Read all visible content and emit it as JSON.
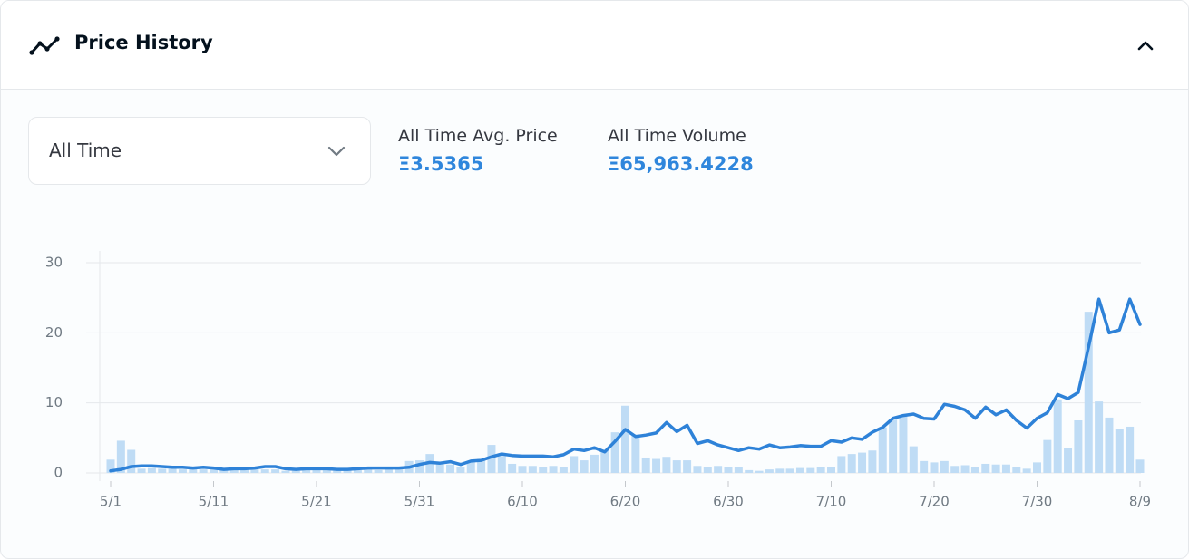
{
  "header": {
    "title": "Price History"
  },
  "filter": {
    "selected": "All Time"
  },
  "stats": [
    {
      "label": "All Time Avg. Price",
      "value": "Ξ3.5365"
    },
    {
      "label": "All Time Volume",
      "value": "Ξ65,963.4228"
    }
  ],
  "chart_data": {
    "type": "combo",
    "categories": [
      "5/1",
      null,
      null,
      null,
      null,
      null,
      null,
      null,
      null,
      null,
      "5/11",
      null,
      null,
      null,
      null,
      null,
      null,
      null,
      null,
      null,
      "5/21",
      null,
      null,
      null,
      null,
      null,
      null,
      null,
      null,
      null,
      "5/31",
      null,
      null,
      null,
      null,
      null,
      null,
      null,
      null,
      null,
      "6/10",
      null,
      null,
      null,
      null,
      null,
      null,
      null,
      null,
      null,
      "6/20",
      null,
      null,
      null,
      null,
      null,
      null,
      null,
      null,
      null,
      "6/30",
      null,
      null,
      null,
      null,
      null,
      null,
      null,
      null,
      null,
      "7/10",
      null,
      null,
      null,
      null,
      null,
      null,
      null,
      null,
      null,
      "7/20",
      null,
      null,
      null,
      null,
      null,
      null,
      null,
      null,
      null,
      "7/30",
      null,
      null,
      null,
      null,
      null,
      null,
      null,
      null,
      null,
      "8/9"
    ],
    "series": [
      {
        "type": "bar",
        "color": "#bfdcf5",
        "values": [
          1.9,
          4.6,
          3.3,
          0.6,
          0.7,
          0.6,
          0.6,
          0.5,
          0.6,
          0.5,
          0.5,
          0.4,
          0.4,
          0.4,
          0.5,
          0.5,
          0.5,
          0.3,
          0.3,
          0.4,
          0.4,
          0.4,
          0.3,
          0.4,
          0.4,
          0.5,
          0.4,
          0.5,
          0.5,
          1.7,
          1.8,
          2.7,
          1.4,
          1.2,
          0.8,
          1.6,
          2.0,
          4.0,
          2.4,
          1.3,
          1.0,
          1.0,
          0.8,
          1.0,
          0.9,
          2.4,
          1.8,
          2.6,
          3.3,
          5.8,
          9.6,
          5.5,
          2.2,
          2.0,
          2.3,
          1.8,
          1.8,
          1.0,
          0.8,
          1.0,
          0.8,
          0.8,
          0.4,
          0.3,
          0.5,
          0.6,
          0.6,
          0.7,
          0.7,
          0.8,
          0.9,
          2.4,
          2.7,
          2.9,
          3.2,
          6.5,
          7.6,
          8.2,
          3.8,
          1.7,
          1.5,
          1.7,
          1.0,
          1.1,
          0.8,
          1.3,
          1.2,
          1.2,
          0.9,
          0.6,
          1.5,
          4.7,
          10.5,
          3.6,
          7.5,
          23.0,
          10.2,
          7.9,
          6.3,
          6.6,
          1.9
        ]
      },
      {
        "type": "line",
        "color": "#2e82d8",
        "values": [
          0.3,
          0.5,
          0.9,
          1.0,
          1.0,
          0.9,
          0.8,
          0.8,
          0.7,
          0.8,
          0.7,
          0.5,
          0.6,
          0.6,
          0.7,
          0.9,
          0.9,
          0.6,
          0.5,
          0.6,
          0.6,
          0.6,
          0.5,
          0.5,
          0.6,
          0.7,
          0.7,
          0.7,
          0.7,
          0.8,
          1.2,
          1.5,
          1.4,
          1.6,
          1.2,
          1.7,
          1.8,
          2.3,
          2.7,
          2.5,
          2.4,
          2.4,
          2.4,
          2.3,
          2.6,
          3.4,
          3.2,
          3.6,
          3.0,
          4.5,
          6.2,
          5.2,
          5.4,
          5.7,
          7.2,
          5.9,
          6.8,
          4.2,
          4.6,
          4.0,
          3.6,
          3.2,
          3.6,
          3.4,
          4.0,
          3.6,
          3.7,
          3.9,
          3.8,
          3.8,
          4.6,
          4.4,
          5.0,
          4.8,
          5.8,
          6.5,
          7.8,
          8.2,
          8.4,
          7.8,
          7.7,
          9.8,
          9.5,
          9.0,
          7.8,
          9.4,
          8.3,
          9.0,
          7.5,
          6.4,
          7.8,
          8.6,
          11.2,
          10.6,
          11.5,
          18.0,
          24.8,
          20.0,
          20.4,
          24.8,
          21.2
        ]
      }
    ],
    "ylim": [
      0,
      30
    ],
    "yticks": [
      0,
      10,
      20,
      30
    ],
    "grid": true
  }
}
